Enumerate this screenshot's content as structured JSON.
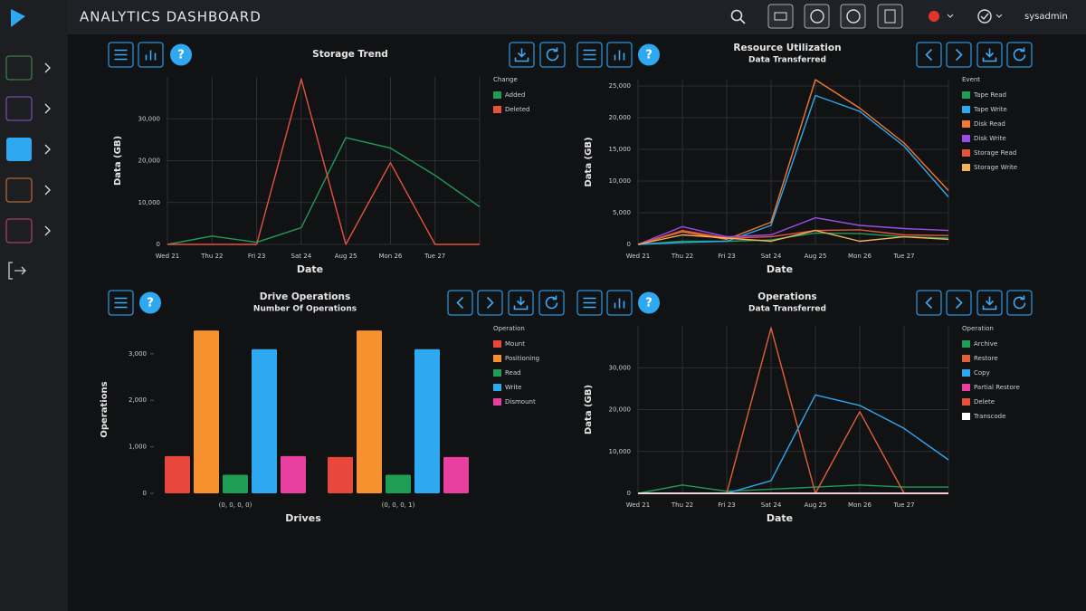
{
  "header": {
    "title": "ANALYTICS DASHBOARD",
    "user": "sysadmin"
  },
  "chart_data": [
    {
      "type": "line",
      "title": "Storage Trend",
      "x_label": "Date",
      "y_label": "Data (GB)",
      "legend_title": "Change",
      "categories": [
        "Wed 21",
        "Thu 22",
        "Fri 23",
        "Sat 24",
        "Aug 25",
        "Mon 26",
        "Tue 27",
        null
      ],
      "series": [
        {
          "name": "Added",
          "color": "#1f9d55",
          "values": [
            0,
            2000,
            500,
            4000,
            25500,
            23000,
            16500,
            9000
          ]
        },
        {
          "name": "Deleted",
          "color": "#e5533d",
          "values": [
            0,
            0,
            0,
            39500,
            0,
            19500,
            0,
            0
          ]
        }
      ],
      "ylim": [
        0,
        40000
      ],
      "yticks": [
        0,
        {
          "value": 10000,
          "label": "10,000"
        },
        {
          "value": 20000,
          "label": "20,000"
        },
        {
          "value": 30000,
          "label": "30,000"
        }
      ],
      "grid": true
    },
    {
      "type": "line",
      "title": "Resource Utilization",
      "subtitle": "Data Transferred",
      "x_label": "Date",
      "y_label": "Data (GB)",
      "legend_title": "Event",
      "categories": [
        "Wed 21",
        "Thu 22",
        "Fri 23",
        "Sat 24",
        "Aug 25",
        "Mon 26",
        "Tue 27",
        null
      ],
      "series": [
        {
          "name": "Tape Read",
          "color": "#1f9d55",
          "values": [
            0,
            500,
            500,
            700,
            1800,
            1700,
            1200,
            1000
          ]
        },
        {
          "name": "Tape Write",
          "color": "#2ea8f0",
          "values": [
            0,
            300,
            500,
            3000,
            23500,
            21000,
            15500,
            7500
          ]
        },
        {
          "name": "Disk Read",
          "color": "#f07a2f",
          "values": [
            0,
            2000,
            800,
            3500,
            26000,
            21500,
            16000,
            8500
          ]
        },
        {
          "name": "Disk Write",
          "color": "#9b4dea",
          "values": [
            0,
            2800,
            1200,
            1500,
            4200,
            3000,
            2500,
            2200
          ]
        },
        {
          "name": "Storage Read",
          "color": "#e5533d",
          "values": [
            0,
            2200,
            1000,
            1200,
            2200,
            2300,
            1500,
            1400
          ]
        },
        {
          "name": "Storage Write",
          "color": "#f2b35a",
          "values": [
            0,
            1500,
            1000,
            500,
            2200,
            500,
            1200,
            800
          ]
        }
      ],
      "ylim": [
        0,
        26000
      ],
      "yticks": [
        0,
        {
          "value": 5000,
          "label": "5,000"
        },
        {
          "value": 10000,
          "label": "10,000"
        },
        {
          "value": 15000,
          "label": "15,000"
        },
        {
          "value": 20000,
          "label": "20,000"
        },
        {
          "value": 25000,
          "label": "25,000"
        }
      ],
      "grid": true
    },
    {
      "type": "bar",
      "title": "Drive Operations",
      "subtitle": "Number Of Operations",
      "x_label": "Drives",
      "y_label": "Operations",
      "legend_title": "Operation",
      "categories": [
        "(0, 0, 0, 0)",
        "(0, 0, 0, 1)"
      ],
      "series": [
        {
          "name": "Mount",
          "color": "#e8483c",
          "values": [
            800,
            780
          ]
        },
        {
          "name": "Positioning",
          "color": "#f7902f",
          "values": [
            3500,
            3500
          ]
        },
        {
          "name": "Read",
          "color": "#1f9d55",
          "values": [
            400,
            400
          ]
        },
        {
          "name": "Write",
          "color": "#2ea8f0",
          "values": [
            3100,
            3100
          ]
        },
        {
          "name": "Dismount",
          "color": "#e93f9e",
          "values": [
            800,
            780
          ]
        }
      ],
      "ylim": [
        0,
        3600
      ],
      "yticks": [
        0,
        {
          "value": 1000,
          "label": "1,000"
        },
        {
          "value": 2000,
          "label": "2,000"
        },
        {
          "value": 3000,
          "label": "3,000"
        }
      ],
      "grid": false
    },
    {
      "type": "line",
      "title": "Operations",
      "subtitle": "Data Transferred",
      "x_label": "Date",
      "y_label": "Data (GB)",
      "legend_title": "Operation",
      "categories": [
        "Wed 21",
        "Thu 22",
        "Fri 23",
        "Sat 24",
        "Aug 25",
        "Mon 26",
        "Tue 27",
        null
      ],
      "series": [
        {
          "name": "Archive",
          "color": "#1f9d55",
          "values": [
            0,
            2000,
            500,
            1000,
            1500,
            2000,
            1500,
            1500
          ]
        },
        {
          "name": "Restore",
          "color": "#e0603a",
          "values": [
            0,
            0,
            0,
            39500,
            0,
            19500,
            0,
            0
          ]
        },
        {
          "name": "Copy",
          "color": "#2ea8f0",
          "values": [
            0,
            0,
            0,
            3000,
            23500,
            21000,
            15500,
            8000
          ]
        },
        {
          "name": "Partial Restore",
          "color": "#e93f9e",
          "values": [
            0,
            0,
            0,
            0,
            0,
            0,
            0,
            0
          ]
        },
        {
          "name": "Delete",
          "color": "#e5533d",
          "values": [
            0,
            0,
            0,
            0,
            0,
            0,
            0,
            0
          ]
        },
        {
          "name": "Transcode",
          "color": "#ffffff",
          "values": [
            0,
            0,
            0,
            0,
            0,
            0,
            0,
            0
          ]
        }
      ],
      "ylim": [
        0,
        40000
      ],
      "yticks": [
        0,
        {
          "value": 10000,
          "label": "10,000"
        },
        {
          "value": 20000,
          "label": "20,000"
        },
        {
          "value": 30000,
          "label": "30,000"
        }
      ],
      "grid": true
    }
  ]
}
